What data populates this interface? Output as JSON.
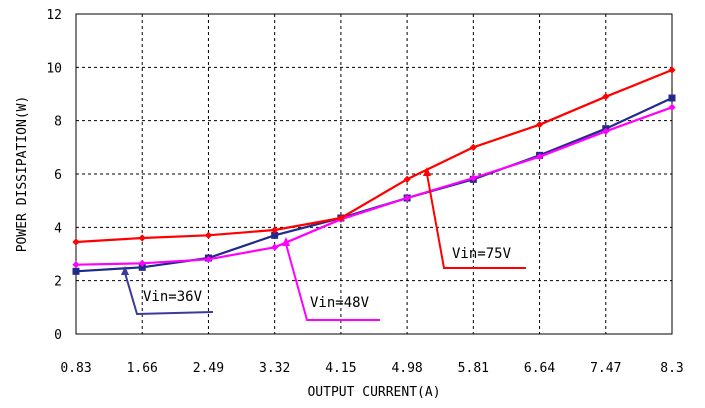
{
  "chart_data": {
    "type": "line",
    "title": "",
    "xlabel": "OUTPUT CURRENT(A)",
    "ylabel": "POWER DISSIPATION(W)",
    "x_ticks": [
      "0.83",
      "1.66",
      "2.49",
      "3.32",
      "4.15",
      "4.98",
      "5.81",
      "6.64",
      "7.47",
      "8.3"
    ],
    "x_range": [
      0.83,
      8.3
    ],
    "ylim": [
      0,
      12
    ],
    "y_ticks": [
      0,
      2,
      4,
      6,
      8,
      10,
      12
    ],
    "grid": true,
    "grid_style": "dashed",
    "series": [
      {
        "name": "Vin=36V",
        "color": "#1f2a8a",
        "marker": "square",
        "x": [
          0.83,
          1.66,
          2.49,
          3.32,
          4.15,
          4.98,
          5.81,
          6.64,
          7.47,
          8.3
        ],
        "y": [
          2.35,
          2.5,
          2.85,
          3.7,
          4.35,
          5.1,
          5.8,
          6.7,
          7.7,
          8.85
        ]
      },
      {
        "name": "Vin=48V",
        "color": "#ff00ff",
        "marker": "diamond",
        "x": [
          0.83,
          1.66,
          2.49,
          3.32,
          4.15,
          4.98,
          5.81,
          6.64,
          7.47,
          8.3
        ],
        "y": [
          2.6,
          2.65,
          2.8,
          3.25,
          4.3,
          5.1,
          5.85,
          6.65,
          7.6,
          8.5
        ]
      },
      {
        "name": "Vin=75V",
        "color": "#ff0000",
        "marker": "diamond",
        "x": [
          0.83,
          1.66,
          2.49,
          3.32,
          4.15,
          4.98,
          5.81,
          6.64,
          7.47,
          8.3
        ],
        "y": [
          3.45,
          3.6,
          3.7,
          3.9,
          4.35,
          5.8,
          7.0,
          7.85,
          8.9,
          9.9
        ]
      }
    ],
    "annotations": [
      {
        "text": "Vin=36V",
        "series": 0,
        "color": "#3a3a9a"
      },
      {
        "text": "Vin=48V",
        "series": 1,
        "color": "#ff00ff"
      },
      {
        "text": "Vin=75V",
        "series": 2,
        "color": "#ff0000"
      }
    ]
  }
}
